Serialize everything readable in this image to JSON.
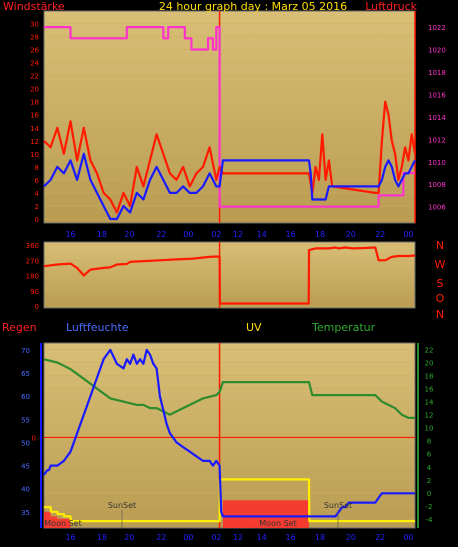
{
  "title": "24 hour graph day : Marz 05 2016",
  "colors": {
    "panel_bg": "#d9bf76",
    "panel_bg_dark": "#b99c52",
    "frame": "#8d8d8d",
    "red": "#ff1a00",
    "blue": "#1a1aff",
    "magenta": "#ff33cc",
    "green": "#2e8b2e",
    "yellow": "#ffee00",
    "label_red": "#ff2020",
    "label_yellow": "#ffdd00"
  },
  "chart_data": [
    {
      "type": "line",
      "title": "24 hour graph day : Marz 05 2016",
      "left_label": "Windstärke",
      "right_label": "Luftdruck",
      "x_ticks": [
        "16",
        "18",
        "20",
        "22",
        "00",
        "02",
        "12",
        "14",
        "16",
        "18",
        "20",
        "22",
        "00"
      ],
      "y_left_ticks": [
        "0",
        "2",
        "4",
        "6",
        "8",
        "10",
        "12",
        "14",
        "16",
        "18",
        "20",
        "22",
        "24",
        "26",
        "28",
        "30"
      ],
      "y_left_range": [
        0,
        31
      ],
      "y_right_ticks": [
        "1006",
        "1008",
        "1010",
        "1012",
        "1014",
        "1016",
        "1018",
        "1020",
        "1022"
      ],
      "y_right_range": [
        1004.9,
        1022.9
      ],
      "series": [
        {
          "axis": "right",
          "color": "magenta",
          "x": [
            0,
            8,
            8,
            25,
            25,
            36,
            36,
            37.5,
            37.5,
            42.5,
            42.5,
            44.5,
            44.5,
            49.5,
            49.5,
            51,
            51,
            52,
            52,
            53,
            53,
            101,
            101,
            108.5,
            108.5,
            112
          ],
          "y": [
            1022,
            1022,
            1021,
            1021,
            1022,
            1022,
            1021,
            1021,
            1022,
            1022,
            1021,
            1021,
            1020,
            1020,
            1021,
            1021,
            1020,
            1020,
            1022,
            1022,
            1006,
            1006,
            1007,
            1007,
            1009,
            1009
          ]
        },
        {
          "axis": "left",
          "color": "red",
          "x": [
            0,
            2,
            4,
            6,
            8,
            10,
            12,
            14,
            16,
            18,
            20,
            22,
            24,
            26,
            28,
            30,
            32,
            34,
            36,
            38,
            40,
            42,
            44,
            46,
            48,
            50,
            52,
            53,
            54,
            80,
            81,
            82,
            83,
            84,
            85,
            86,
            87,
            100,
            101,
            102,
            103,
            104,
            105,
            106,
            107,
            108,
            109,
            110,
            111,
            112
          ],
          "y": [
            12,
            11,
            14,
            10,
            15,
            9,
            14,
            9,
            7,
            4,
            3,
            1,
            4,
            2,
            8,
            5,
            9,
            13,
            10,
            7,
            6,
            8,
            5,
            7,
            8,
            11,
            6,
            8,
            7,
            7,
            4,
            8,
            6,
            13,
            6,
            9,
            5,
            4,
            4,
            12,
            18,
            16,
            12,
            10,
            6,
            8,
            11,
            9,
            13,
            10
          ]
        },
        {
          "axis": "left",
          "color": "blue",
          "x": [
            0,
            2,
            4,
            6,
            8,
            10,
            12,
            14,
            16,
            18,
            20,
            22,
            24,
            26,
            28,
            30,
            32,
            34,
            36,
            38,
            40,
            42,
            44,
            46,
            48,
            50,
            52,
            53,
            54,
            80,
            80.5,
            81,
            85,
            86,
            87,
            100,
            101,
            102,
            103,
            104,
            105,
            106,
            107,
            108,
            109,
            110,
            111,
            112
          ],
          "y": [
            5,
            6,
            8,
            7,
            9,
            6,
            10,
            6,
            4,
            2,
            0,
            0,
            2,
            1,
            4,
            3,
            6,
            8,
            6,
            4,
            4,
            5,
            4,
            4,
            5,
            7,
            5,
            5,
            9,
            9,
            7,
            3,
            3,
            5,
            5,
            5,
            5,
            6,
            8,
            9,
            8,
            6,
            5,
            6,
            7,
            7,
            8,
            9
          ]
        }
      ]
    },
    {
      "type": "line",
      "title": "",
      "x_ticks": [],
      "y_left_ticks": [
        "0",
        "90",
        "180",
        "270",
        "360"
      ],
      "y_left_range": [
        0,
        360
      ],
      "right_labels": [
        "N",
        "W",
        "S",
        "O",
        "N"
      ],
      "series": [
        {
          "axis": "left",
          "color": "red",
          "x": [
            0,
            4,
            8,
            10,
            12,
            14,
            18,
            20,
            22,
            25,
            26,
            30,
            35,
            40,
            45,
            50,
            52,
            53,
            53.1,
            79.9,
            80,
            82,
            86,
            88,
            89,
            91,
            93,
            96,
            100,
            101,
            103,
            105,
            107,
            110,
            112
          ],
          "y": [
            235,
            245,
            250,
            225,
            180,
            215,
            225,
            228,
            245,
            248,
            260,
            265,
            270,
            275,
            280,
            290,
            292,
            290,
            15,
            15,
            330,
            340,
            340,
            345,
            340,
            345,
            340,
            342,
            345,
            270,
            270,
            290,
            295,
            295,
            298
          ]
        }
      ]
    },
    {
      "type": "line",
      "title": "",
      "labels": [
        "Regen",
        "Luftfeuchte",
        "UV",
        "Temperatur"
      ],
      "x_ticks": [
        "16",
        "18",
        "20",
        "22",
        "00",
        "02",
        "12",
        "14",
        "16",
        "18",
        "20",
        "22",
        "00"
      ],
      "y_left_ticks": [
        "35",
        "40",
        "45",
        "50",
        "55",
        "60",
        "65",
        "70"
      ],
      "y_left_range": [
        31.5,
        71.5
      ],
      "y_right_ticks": [
        "-4",
        "-2",
        "0",
        "2",
        "4",
        "6",
        "8",
        "10",
        "12",
        "14",
        "16",
        "18",
        "20",
        "22"
      ],
      "y_right_range": [
        -5.4,
        23
      ],
      "rain_mark": "0",
      "annotations": [
        "Moon Set",
        "SunSet",
        "Moon Set",
        "SunSet"
      ],
      "series": [
        {
          "axis": "left",
          "color": "blue",
          "name": "Luftfeuchte",
          "x": [
            0,
            1,
            1.5,
            2,
            4,
            6,
            8,
            10,
            12,
            14,
            16,
            18,
            20,
            22,
            24,
            25,
            26,
            27,
            28,
            29,
            30,
            31,
            32,
            33,
            34,
            35,
            36,
            37,
            38,
            40,
            42,
            44,
            46,
            48,
            50,
            51,
            52,
            53,
            53.5,
            54,
            80,
            88,
            89,
            90,
            91,
            92,
            100,
            101,
            102,
            112
          ],
          "y": [
            43,
            44,
            44,
            45,
            45,
            46,
            48,
            52,
            56,
            60,
            64,
            68,
            70,
            67,
            66,
            68,
            67,
            69,
            67,
            68,
            67,
            70,
            69,
            67,
            66,
            60,
            57,
            54,
            52,
            50,
            49,
            48,
            47,
            46,
            46,
            45,
            46,
            45,
            35,
            34,
            34,
            34,
            35,
            36,
            36,
            37,
            37,
            38,
            39,
            39
          ]
        },
        {
          "axis": "right",
          "color": "green",
          "name": "Temperatur",
          "x": [
            0,
            4,
            6,
            8,
            12,
            16,
            20,
            24,
            28,
            30,
            32,
            34,
            36,
            38,
            40,
            42,
            44,
            46,
            48,
            52,
            53,
            54,
            80,
            81,
            100,
            102,
            106,
            108,
            110,
            112
          ],
          "y": [
            20.5,
            20,
            19.5,
            19,
            17.5,
            16,
            14.5,
            14,
            13.5,
            13.5,
            13,
            13,
            12.5,
            12,
            12.5,
            13,
            13.5,
            14,
            14.5,
            15,
            15.5,
            17,
            17,
            15,
            15,
            14,
            13,
            12,
            11.5,
            11.5
          ]
        },
        {
          "axis": "left",
          "color": "yellow",
          "name": "UV",
          "x": [
            0,
            2,
            2.1,
            4,
            4.1,
            6,
            6.1,
            8,
            8.1,
            53,
            53.1,
            80,
            80.1,
            112
          ],
          "y": [
            36,
            36,
            35,
            35,
            34.5,
            34.5,
            34,
            34,
            33,
            33,
            42,
            42,
            33,
            33
          ]
        }
      ],
      "rain_bars": [
        {
          "x0": 0,
          "x1": 2,
          "y": 35
        },
        {
          "x0": 2,
          "x1": 4,
          "y": 34
        },
        {
          "x0": 4,
          "x1": 8,
          "y": 33.5
        },
        {
          "x0": 54,
          "x1": 80,
          "y": 37.5
        }
      ]
    }
  ]
}
